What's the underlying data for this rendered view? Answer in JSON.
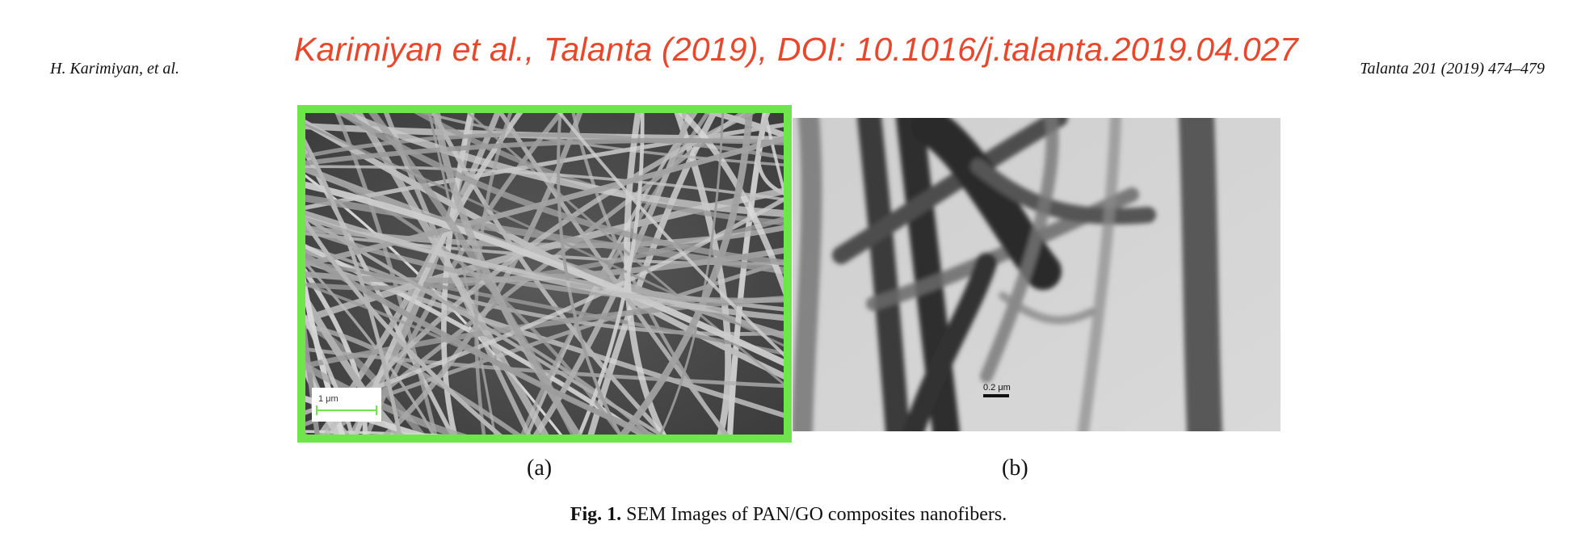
{
  "header": {
    "running_left": "H. Karimiyan, et al.",
    "running_right": "Talanta 201 (2019) 474–479",
    "citation_banner": "Karimiyan et al., Talanta (2019), DOI: 10.1016/j.talanta.2019.04.027",
    "citation_color": "#e8472b"
  },
  "figure": {
    "highlight_color": "#6de54b",
    "panels": [
      {
        "label": "(a)",
        "scale_bar": "1 μm",
        "kind": "SEM image"
      },
      {
        "label": "(b)",
        "scale_bar": "0.2 μm",
        "kind": "TEM image"
      }
    ],
    "caption_number": "Fig. 1.",
    "caption_text": "SEM Images of PAN/GO composites nanofibers."
  }
}
